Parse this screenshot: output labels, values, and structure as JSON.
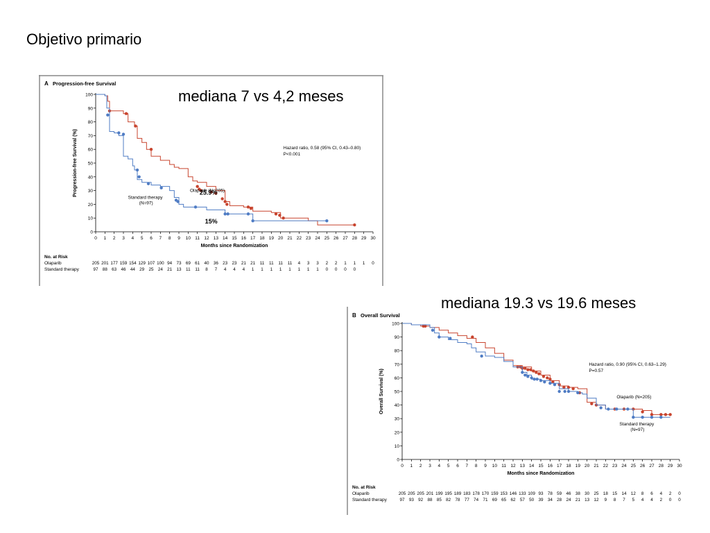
{
  "slide": {
    "title": "Objetivo primario",
    "annotation_a": "mediana 7 vs 4,2 meses",
    "annotation_b": "mediana 19.3 vs 19.6 meses"
  },
  "colors": {
    "olaparib": "#c8442e",
    "standard": "#4f7cc4",
    "frame": "#888888"
  },
  "chart_data": [
    {
      "type": "line",
      "panel_label": "A",
      "title": "Progression-free Survival",
      "xlabel": "Months since Randomization",
      "ylabel": "Progression-free Survival (%)",
      "xlim": [
        0,
        30
      ],
      "ylim": [
        0,
        100
      ],
      "xticks": [
        0,
        1,
        2,
        3,
        4,
        5,
        6,
        7,
        8,
        9,
        10,
        11,
        12,
        13,
        14,
        15,
        16,
        17,
        18,
        19,
        20,
        21,
        22,
        23,
        24,
        25,
        26,
        27,
        28,
        29,
        30
      ],
      "yticks": [
        0,
        10,
        20,
        30,
        40,
        50,
        60,
        70,
        80,
        90,
        100
      ],
      "hazard_text": [
        "Hazard ratio, 0.58 (95% CI, 0.43–0.80)",
        "P<0.001"
      ],
      "overlay_labels": [
        {
          "text": "25.9%",
          "x": 12.2,
          "y": 27
        },
        {
          "text": "15%",
          "x": 12.5,
          "y": 6
        }
      ],
      "series": [
        {
          "name": "Olaparib (N=205)",
          "color": "olaparib",
          "label_at": {
            "x": 10.2,
            "y": 29
          },
          "points": [
            [
              0,
              100
            ],
            [
              1,
              99
            ],
            [
              1.3,
              95
            ],
            [
              1.5,
              88
            ],
            [
              3,
              86
            ],
            [
              3.5,
              80
            ],
            [
              4.2,
              77
            ],
            [
              4.5,
              68
            ],
            [
              5,
              65
            ],
            [
              5.5,
              60
            ],
            [
              6,
              55
            ],
            [
              7,
              52
            ],
            [
              8,
              49
            ],
            [
              8.5,
              47
            ],
            [
              9,
              46
            ],
            [
              10,
              40
            ],
            [
              10.5,
              37
            ],
            [
              11,
              36
            ],
            [
              12,
              33
            ],
            [
              13,
              30
            ],
            [
              14,
              22
            ],
            [
              14.5,
              19
            ],
            [
              15,
              19
            ],
            [
              16,
              18
            ],
            [
              17,
              15
            ],
            [
              19,
              14
            ],
            [
              20,
              10
            ],
            [
              22,
              10
            ],
            [
              23,
              8
            ],
            [
              24,
              5
            ],
            [
              28,
              5
            ]
          ],
          "censor": [
            [
              1.5,
              88
            ],
            [
              3.3,
              86
            ],
            [
              4.3,
              77
            ],
            [
              6,
              60
            ],
            [
              11,
              33
            ],
            [
              11.2,
              31
            ],
            [
              11.4,
              30
            ],
            [
              12.5,
              29
            ],
            [
              13,
              28
            ],
            [
              13.7,
              24
            ],
            [
              14,
              22
            ],
            [
              14.2,
              20
            ],
            [
              16.5,
              18
            ],
            [
              16.8,
              17
            ],
            [
              19.5,
              13
            ],
            [
              19.9,
              12
            ],
            [
              20.3,
              10
            ],
            [
              28,
              5
            ]
          ]
        },
        {
          "name": "Standard therapy (N=97)",
          "color": "standard",
          "label_at": {
            "x": 3.5,
            "y": 24
          },
          "points": [
            [
              0,
              100
            ],
            [
              1,
              99
            ],
            [
              1.2,
              90
            ],
            [
              1.5,
              73
            ],
            [
              2,
              72
            ],
            [
              2.5,
              70
            ],
            [
              3,
              55
            ],
            [
              3.5,
              53
            ],
            [
              4,
              48
            ],
            [
              4.2,
              45
            ],
            [
              4.5,
              38
            ],
            [
              5,
              36
            ],
            [
              6,
              34
            ],
            [
              7,
              33
            ],
            [
              8,
              30
            ],
            [
              8.5,
              25
            ],
            [
              9,
              20
            ],
            [
              9.5,
              18
            ],
            [
              10,
              18
            ],
            [
              12,
              16
            ],
            [
              14,
              13
            ],
            [
              16,
              13
            ],
            [
              17,
              8
            ],
            [
              25,
              8
            ]
          ],
          "censor": [
            [
              1.3,
              85
            ],
            [
              2.5,
              72
            ],
            [
              3,
              71
            ],
            [
              4.5,
              45
            ],
            [
              4.7,
              40
            ],
            [
              5.7,
              35
            ],
            [
              7.1,
              32
            ],
            [
              8.7,
              23
            ],
            [
              8.9,
              22
            ],
            [
              10.8,
              18
            ],
            [
              14,
              13
            ],
            [
              14.3,
              13
            ],
            [
              16.5,
              13
            ],
            [
              17,
              8
            ],
            [
              25,
              8
            ]
          ]
        }
      ],
      "at_risk": {
        "header": "No. at Risk",
        "rows": [
          {
            "label": "Olaparib",
            "values": [
              "205",
              "201",
              "177",
              "159",
              "154",
              "129",
              "107",
              "100",
              "94",
              "73",
              "69",
              "61",
              "40",
              "36",
              "23",
              "23",
              "21",
              "21",
              "11",
              "11",
              "11",
              "11",
              "4",
              "3",
              "3",
              "2",
              "2",
              "1",
              "1",
              "1",
              "0"
            ]
          },
          {
            "label": "Standard therapy",
            "values": [
              "97",
              "88",
              "63",
              "46",
              "44",
              "29",
              "25",
              "24",
              "21",
              "13",
              "11",
              "11",
              "8",
              "7",
              "4",
              "4",
              "4",
              "1",
              "1",
              "1",
              "1",
              "1",
              "1",
              "1",
              "1",
              "0",
              "0",
              "0",
              "0",
              "",
              ""
            ]
          }
        ]
      }
    },
    {
      "type": "line",
      "panel_label": "B",
      "title": "Overall Survival",
      "xlabel": "Months since Randomization",
      "ylabel": "Overall Survival (%)",
      "xlim": [
        0,
        30
      ],
      "ylim": [
        0,
        100
      ],
      "xticks": [
        0,
        1,
        2,
        3,
        4,
        5,
        6,
        7,
        8,
        9,
        10,
        11,
        12,
        13,
        14,
        15,
        16,
        17,
        18,
        19,
        20,
        21,
        22,
        23,
        24,
        25,
        26,
        27,
        28,
        29,
        30
      ],
      "yticks": [
        0,
        10,
        20,
        30,
        40,
        50,
        60,
        70,
        80,
        90,
        100
      ],
      "hazard_text": [
        "Hazard ratio, 0.90 (95% CI, 0.63–1.29)",
        "P=0.57"
      ],
      "overlay_labels": [],
      "series": [
        {
          "name": "Olaparib (N=205)",
          "color": "olaparib",
          "label_at": {
            "x": 23.2,
            "y": 45
          },
          "points": [
            [
              0,
              100
            ],
            [
              1,
              99
            ],
            [
              2,
              98
            ],
            [
              3,
              97
            ],
            [
              4,
              95
            ],
            [
              5,
              93
            ],
            [
              6,
              91
            ],
            [
              7,
              89
            ],
            [
              8,
              86
            ],
            [
              9,
              82
            ],
            [
              10,
              78
            ],
            [
              11,
              73
            ],
            [
              12,
              69
            ],
            [
              13,
              68
            ],
            [
              14,
              65
            ],
            [
              15,
              62
            ],
            [
              16,
              58
            ],
            [
              17,
              54
            ],
            [
              18,
              53
            ],
            [
              19,
              52
            ],
            [
              20,
              42
            ],
            [
              21,
              40
            ],
            [
              22,
              37
            ],
            [
              23,
              37
            ],
            [
              24,
              37
            ],
            [
              25,
              37
            ],
            [
              26,
              36
            ],
            [
              27,
              33
            ],
            [
              29,
              33
            ]
          ],
          "censor": [
            [
              2.3,
              98
            ],
            [
              2.5,
              98
            ],
            [
              7.6,
              90
            ],
            [
              12.5,
              68
            ],
            [
              12.8,
              68
            ],
            [
              13,
              67
            ],
            [
              13.3,
              67
            ],
            [
              13.6,
              66
            ],
            [
              13.9,
              66
            ],
            [
              14.2,
              65
            ],
            [
              14.5,
              64
            ],
            [
              14.8,
              63
            ],
            [
              15.3,
              61
            ],
            [
              15.7,
              60
            ],
            [
              16,
              59
            ],
            [
              16.3,
              57
            ],
            [
              17,
              55
            ],
            [
              17.5,
              53
            ],
            [
              18,
              53
            ],
            [
              18.5,
              52
            ],
            [
              19.2,
              49
            ],
            [
              20.5,
              41
            ],
            [
              21,
              40
            ],
            [
              23,
              37
            ],
            [
              24,
              37
            ],
            [
              25,
              37
            ],
            [
              26,
              35
            ],
            [
              27,
              33
            ],
            [
              28,
              33
            ],
            [
              28.5,
              33
            ],
            [
              29,
              33
            ]
          ]
        },
        {
          "name": "Standard therapy (N=97)",
          "color": "standard",
          "label_at": {
            "x": 23.5,
            "y": 25
          },
          "points": [
            [
              0,
              100
            ],
            [
              1,
              99
            ],
            [
              3,
              97
            ],
            [
              3.5,
              93
            ],
            [
              4,
              90
            ],
            [
              5,
              88
            ],
            [
              6,
              86
            ],
            [
              7,
              85
            ],
            [
              7.5,
              82
            ],
            [
              8,
              79
            ],
            [
              9,
              76
            ],
            [
              10,
              75
            ],
            [
              11,
              72
            ],
            [
              12,
              68
            ],
            [
              13,
              64
            ],
            [
              13.5,
              62
            ],
            [
              14,
              59
            ],
            [
              15,
              58
            ],
            [
              16,
              56
            ],
            [
              17,
              52
            ],
            [
              18,
              50
            ],
            [
              19,
              49
            ],
            [
              19.5,
              48
            ],
            [
              20,
              45
            ],
            [
              21,
              40
            ],
            [
              22,
              37
            ],
            [
              24,
              37
            ],
            [
              25,
              31
            ],
            [
              29,
              31
            ]
          ],
          "censor": [
            [
              3.3,
              95
            ],
            [
              4,
              90
            ],
            [
              5.2,
              89
            ],
            [
              8.6,
              76
            ],
            [
              13,
              64
            ],
            [
              13.3,
              62
            ],
            [
              13.6,
              61
            ],
            [
              14,
              60
            ],
            [
              14.3,
              59
            ],
            [
              14.6,
              59
            ],
            [
              15,
              58
            ],
            [
              15.4,
              57
            ],
            [
              16,
              56
            ],
            [
              16.5,
              55
            ],
            [
              17,
              50
            ],
            [
              17.6,
              50
            ],
            [
              18,
              50
            ],
            [
              19,
              49
            ],
            [
              21.5,
              38
            ],
            [
              22.3,
              37
            ],
            [
              23.2,
              37
            ],
            [
              24.4,
              37
            ],
            [
              25,
              31
            ],
            [
              26,
              31
            ],
            [
              27,
              31
            ],
            [
              28,
              31
            ]
          ]
        }
      ],
      "at_risk": {
        "header": "No. at Risk",
        "rows": [
          {
            "label": "Olaparib",
            "values": [
              "205",
              "205",
              "205",
              "201",
              "199",
              "195",
              "189",
              "183",
              "178",
              "170",
              "159",
              "153",
              "146",
              "133",
              "109",
              "93",
              "78",
              "59",
              "46",
              "38",
              "30",
              "25",
              "18",
              "15",
              "14",
              "12",
              "8",
              "6",
              "4",
              "2",
              "0"
            ]
          },
          {
            "label": "Standard therapy",
            "values": [
              "97",
              "93",
              "92",
              "88",
              "85",
              "82",
              "78",
              "77",
              "74",
              "71",
              "69",
              "65",
              "62",
              "57",
              "50",
              "39",
              "34",
              "28",
              "24",
              "21",
              "13",
              "12",
              "9",
              "8",
              "7",
              "5",
              "4",
              "4",
              "2",
              "0",
              "0"
            ]
          }
        ]
      }
    }
  ]
}
